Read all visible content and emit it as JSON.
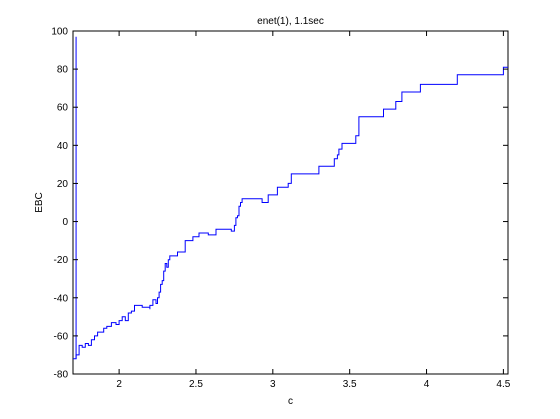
{
  "chart_data": {
    "type": "line",
    "title": "enet(1), 1.1sec",
    "xlabel": "c",
    "ylabel": "EBC",
    "xlim": [
      1.7,
      4.53
    ],
    "ylim": [
      -80,
      100
    ],
    "xticks": [
      2,
      2.5,
      3,
      3.5,
      4,
      4.5
    ],
    "yticks": [
      -80,
      -60,
      -40,
      -20,
      0,
      20,
      40,
      60,
      80,
      100
    ],
    "grid": false,
    "step": true,
    "line_color": "#0000ff",
    "series": [
      {
        "x": [
          1.7,
          1.72,
          1.74,
          1.76,
          1.78,
          1.8,
          1.82,
          1.84,
          1.86,
          1.9,
          1.92,
          1.95,
          1.98,
          2.0,
          2.02,
          2.04,
          2.06,
          2.08,
          2.1,
          2.15,
          2.2,
          2.2,
          2.22,
          2.24,
          2.25,
          2.26,
          2.27,
          2.28,
          2.29,
          2.3,
          2.31,
          2.32,
          2.33,
          2.38,
          2.43,
          2.48,
          2.52,
          2.58,
          2.63,
          2.68,
          2.73,
          2.75,
          2.76,
          2.77,
          2.78,
          2.79,
          2.8,
          2.8,
          2.93,
          2.97,
          3.03,
          3.08,
          3.1,
          3.12,
          3.18,
          3.22,
          3.3,
          3.38,
          3.4,
          3.42,
          3.43,
          3.45,
          3.54,
          3.56,
          3.72,
          3.8,
          3.84,
          3.92,
          3.96,
          4.02,
          4.05,
          4.13,
          4.2,
          4.28,
          4.38,
          4.48,
          4.5,
          4.53
        ],
        "y": [
          -72,
          -70,
          -65,
          -66,
          -64,
          -65,
          -62,
          -60,
          -58,
          -56,
          -55,
          -53,
          -54,
          -52,
          -50,
          -52,
          -48,
          -47,
          -44,
          -45,
          -46,
          -44,
          -41,
          -43,
          -40,
          -37,
          -33,
          -31,
          -26,
          -22,
          -24,
          -20,
          -18,
          -16,
          -10,
          -8,
          -6,
          -7,
          -4,
          -4,
          -5,
          -2,
          2,
          3,
          8,
          10,
          11,
          12,
          10,
          14,
          18,
          18,
          20,
          25,
          25,
          25,
          29,
          29,
          33,
          35,
          38,
          41,
          45,
          55,
          59,
          63,
          68,
          68,
          72,
          72,
          72,
          72,
          77,
          77,
          77,
          77,
          81,
          81
        ]
      }
    ]
  }
}
